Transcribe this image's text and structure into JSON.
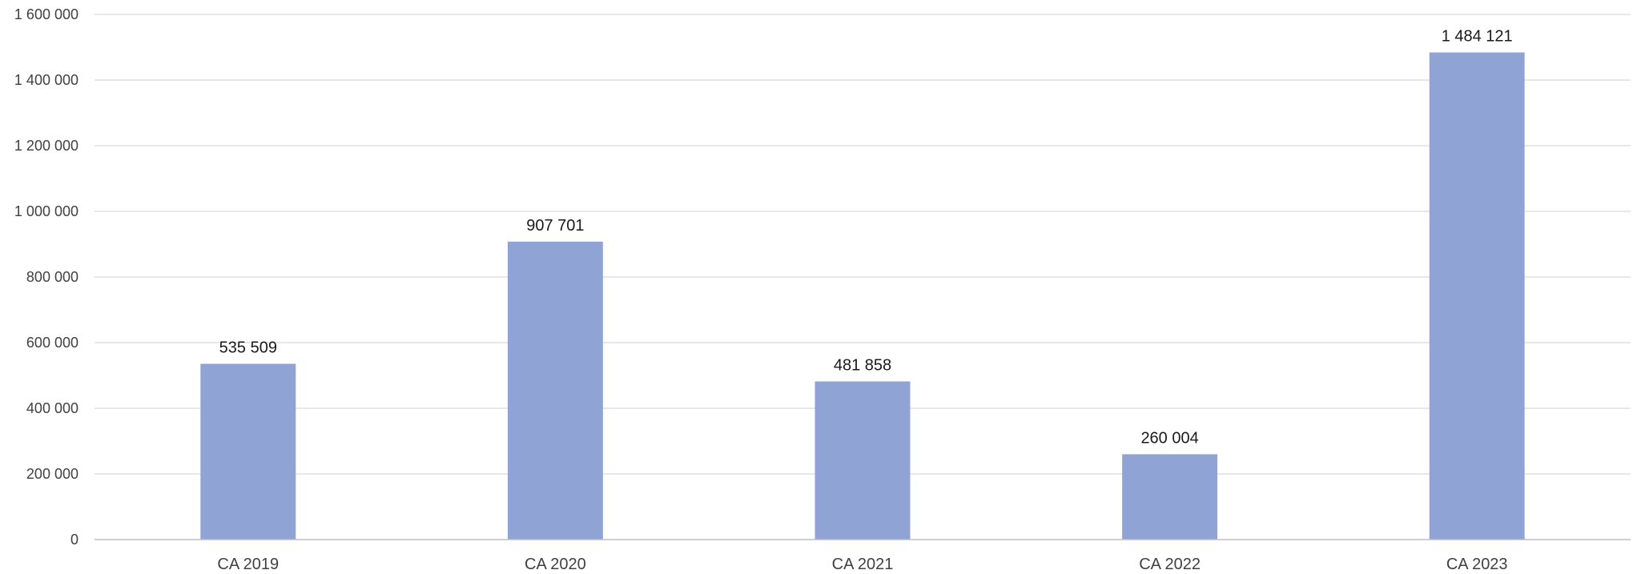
{
  "chart_data": {
    "type": "bar",
    "categories": [
      "CA 2019",
      "CA 2020",
      "CA 2021",
      "CA 2022",
      "CA 2023"
    ],
    "values": [
      535509,
      907701,
      481858,
      260004,
      1484121
    ],
    "value_labels": [
      "535 509",
      "907 701",
      "481 858",
      "260 004",
      "1 484 121"
    ],
    "title": "",
    "xlabel": "",
    "ylabel": "",
    "ylim": [
      0,
      1600000
    ],
    "y_ticks": [
      0,
      200000,
      400000,
      600000,
      800000,
      1000000,
      1200000,
      1400000,
      1600000
    ],
    "y_tick_labels": [
      "0",
      "200 000",
      "400 000",
      "600 000",
      "800 000",
      "1 000 000",
      "1 200 000",
      "1 400 000",
      "1 600 000"
    ],
    "grid": true,
    "legend": "none",
    "bar_color": "#8FA3D5"
  }
}
